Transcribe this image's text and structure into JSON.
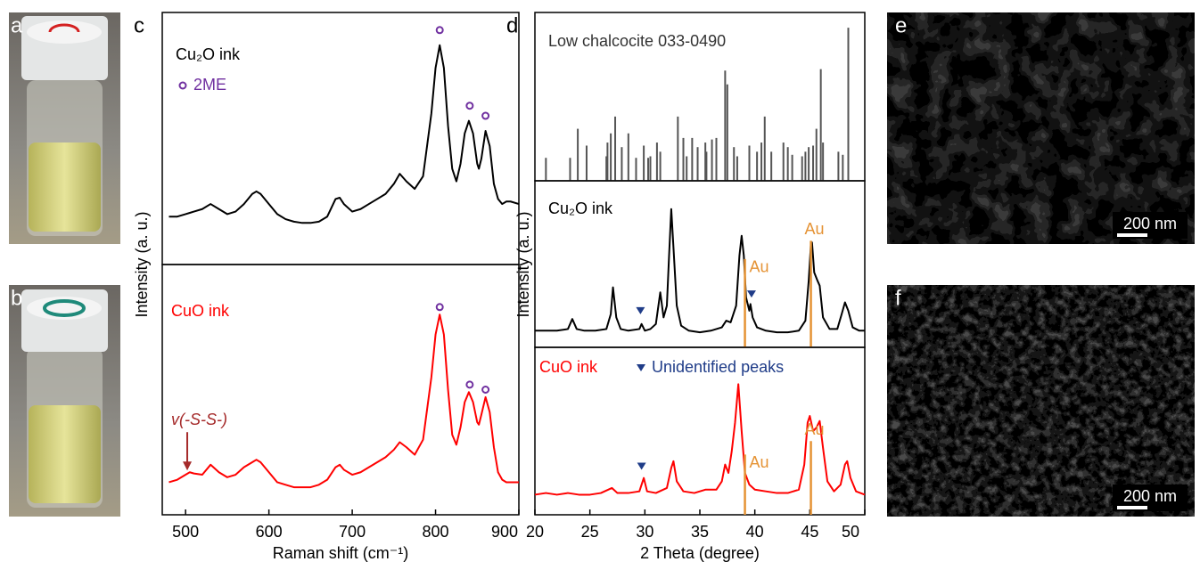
{
  "figure": {
    "panels": [
      "a",
      "b",
      "c",
      "d",
      "e",
      "f"
    ],
    "scale_bars": [
      "200 nm",
      "200 nm"
    ]
  },
  "chart_data": [
    {
      "type": "line",
      "xlim": [
        472,
        900
      ],
      "ylim": [
        0,
        1
      ],
      "x": [
        480,
        490,
        500,
        505,
        510,
        520,
        530,
        540,
        550,
        560,
        570,
        580,
        585,
        590,
        600,
        610,
        620,
        630,
        640,
        650,
        660,
        670,
        680,
        685,
        690,
        700,
        710,
        720,
        730,
        740,
        750,
        757,
        765,
        775,
        785,
        795,
        800,
        805,
        810,
        815,
        820,
        825,
        830,
        835,
        840,
        845,
        850,
        852,
        855,
        860,
        865,
        870,
        875,
        880,
        885,
        890,
        900
      ],
      "series": [
        {
          "name": "Cu₂O ink",
          "color": "#000000",
          "values": [
            0.19,
            0.19,
            0.2,
            0.205,
            0.21,
            0.22,
            0.24,
            0.22,
            0.2,
            0.21,
            0.24,
            0.28,
            0.29,
            0.28,
            0.24,
            0.2,
            0.18,
            0.17,
            0.165,
            0.165,
            0.17,
            0.19,
            0.26,
            0.265,
            0.24,
            0.21,
            0.22,
            0.24,
            0.26,
            0.28,
            0.32,
            0.36,
            0.33,
            0.3,
            0.35,
            0.6,
            0.78,
            0.87,
            0.78,
            0.55,
            0.38,
            0.33,
            0.4,
            0.52,
            0.57,
            0.52,
            0.4,
            0.38,
            0.42,
            0.53,
            0.47,
            0.32,
            0.26,
            0.24,
            0.25,
            0.25,
            0.24
          ]
        }
      ],
      "markers": {
        "name": "2ME",
        "shape": "circle",
        "color": "#7030a0",
        "x": [
          805,
          841,
          860
        ],
        "y": [
          0.93,
          0.63,
          0.59
        ]
      }
    },
    {
      "type": "line",
      "xlim": [
        472,
        900
      ],
      "ylim": [
        0,
        1
      ],
      "xticks": [
        500,
        600,
        700,
        800,
        900
      ],
      "xlabel": "Raman shift (cm⁻¹)",
      "ylabel": "Intensity (a. u.)",
      "x": [
        480,
        490,
        500,
        505,
        510,
        520,
        530,
        540,
        550,
        560,
        570,
        580,
        585,
        590,
        600,
        610,
        620,
        630,
        640,
        650,
        660,
        670,
        680,
        685,
        690,
        700,
        710,
        720,
        730,
        740,
        750,
        757,
        765,
        775,
        785,
        795,
        800,
        805,
        810,
        815,
        820,
        825,
        830,
        835,
        840,
        845,
        850,
        852,
        855,
        860,
        865,
        870,
        875,
        880,
        885,
        890,
        900
      ],
      "series": [
        {
          "name": "CuO ink",
          "color": "#ff0000",
          "values": [
            0.13,
            0.14,
            0.16,
            0.17,
            0.165,
            0.16,
            0.2,
            0.17,
            0.15,
            0.16,
            0.19,
            0.21,
            0.22,
            0.21,
            0.17,
            0.13,
            0.12,
            0.11,
            0.11,
            0.11,
            0.12,
            0.14,
            0.19,
            0.2,
            0.18,
            0.16,
            0.17,
            0.19,
            0.21,
            0.23,
            0.26,
            0.29,
            0.27,
            0.24,
            0.3,
            0.55,
            0.72,
            0.8,
            0.72,
            0.5,
            0.32,
            0.28,
            0.35,
            0.45,
            0.49,
            0.45,
            0.37,
            0.36,
            0.4,
            0.47,
            0.41,
            0.27,
            0.17,
            0.14,
            0.13,
            0.13,
            0.13
          ]
        }
      ],
      "markers": {
        "shape": "circle",
        "color": "#7030a0",
        "x": [
          805,
          841,
          860
        ],
        "y": [
          0.83,
          0.52,
          0.5
        ]
      },
      "annotation": {
        "text": "v(-S-S-)",
        "color": "#a52a2a",
        "x": 502,
        "y": 0.17
      }
    },
    {
      "type": "stick",
      "xlim": [
        20,
        50
      ],
      "ylim": [
        0,
        110
      ],
      "title": "Low chalcocite 033-0490",
      "color": "#555555",
      "x": [
        21,
        23.2,
        23.9,
        24.7,
        26.5,
        26.6,
        26.9,
        27.3,
        27.9,
        28.5,
        29.2,
        29.9,
        30.3,
        30.5,
        31.1,
        31.4,
        33,
        33.5,
        33.8,
        34.3,
        34.8,
        35.5,
        35.6,
        36.1,
        36.5,
        37.3,
        37.5,
        38.1,
        38.4,
        39.5,
        40.2,
        40.6,
        40.9,
        41.5,
        42.6,
        43,
        43.4,
        44.3,
        44.6,
        44.9,
        45.3,
        45.6,
        46,
        46.2,
        47.6,
        48,
        48.5
      ],
      "values": [
        15,
        15,
        34,
        23,
        16,
        25,
        31,
        42,
        22,
        31,
        15,
        23,
        15,
        16,
        25,
        19,
        42,
        28,
        16,
        28,
        22,
        25,
        19,
        27,
        28,
        72,
        63,
        22,
        16,
        23,
        19,
        25,
        42,
        19,
        25,
        22,
        17,
        16,
        19,
        22,
        23,
        34,
        73,
        25,
        19,
        17,
        100
      ]
    },
    {
      "type": "line",
      "xlim": [
        20,
        50
      ],
      "ylim": [
        0,
        1
      ],
      "x": [
        20,
        21,
        22,
        23,
        23.4,
        23.8,
        24.5,
        25.5,
        26.5,
        26.9,
        27.1,
        27.4,
        27.8,
        28.5,
        29.5,
        29.7,
        30,
        30.5,
        31,
        31.4,
        31.7,
        32,
        32.2,
        32.4,
        32.6,
        32.9,
        33.3,
        34,
        35,
        36,
        37,
        37.4,
        37.8,
        38.3,
        38.6,
        38.8,
        39,
        39.2,
        39.5,
        39.6,
        39.8,
        40.2,
        41,
        42,
        43,
        44,
        44.6,
        44.9,
        45.1,
        45.2,
        45.4,
        45.7,
        45.9,
        46.2,
        46.8,
        47.5,
        47.9,
        48.2,
        48.5,
        48.9,
        49.5,
        50
      ],
      "series": [
        {
          "name": "Cu₂O ink",
          "color": "#000000",
          "values": [
            0.1,
            0.1,
            0.1,
            0.11,
            0.17,
            0.11,
            0.1,
            0.1,
            0.11,
            0.2,
            0.36,
            0.18,
            0.11,
            0.1,
            0.11,
            0.14,
            0.1,
            0.11,
            0.14,
            0.33,
            0.18,
            0.25,
            0.55,
            0.83,
            0.6,
            0.25,
            0.13,
            0.1,
            0.09,
            0.1,
            0.12,
            0.16,
            0.15,
            0.25,
            0.55,
            0.67,
            0.55,
            0.3,
            0.22,
            0.26,
            0.18,
            0.12,
            0.1,
            0.09,
            0.09,
            0.1,
            0.16,
            0.4,
            0.62,
            0.63,
            0.45,
            0.4,
            0.37,
            0.18,
            0.11,
            0.11,
            0.2,
            0.27,
            0.22,
            0.12,
            0.1,
            0.1
          ]
        }
      ],
      "markers": {
        "shape": "triangle",
        "color": "#1f3c88",
        "x": [
          29.6,
          39.7
        ],
        "y": [
          0.22,
          0.32
        ]
      },
      "reference_lines": {
        "color": "#e59335",
        "x": [
          39.1,
          45.1
        ],
        "top": [
          0.53,
          0.64
        ],
        "labels": [
          "Au",
          "Au"
        ]
      }
    },
    {
      "type": "line",
      "xlim": [
        20,
        50
      ],
      "ylim": [
        0,
        1
      ],
      "xticks": [
        20,
        25,
        30,
        35,
        40,
        45,
        50
      ],
      "xlabel": "2 Theta (degree)",
      "ylabel": "Intensity (a. u.)",
      "x": [
        20,
        21,
        22,
        23,
        24,
        25,
        26,
        27,
        27.5,
        28.5,
        29.5,
        29.9,
        30.2,
        31,
        32,
        32.4,
        32.6,
        32.9,
        33.5,
        34.5,
        35.5,
        36.5,
        37,
        37.3,
        37.6,
        37.9,
        38.2,
        38.5,
        38.8,
        39.1,
        39.5,
        40,
        41,
        42,
        43,
        44,
        44.5,
        44.8,
        45,
        45.3,
        45.6,
        45.9,
        46.2,
        46.6,
        47.2,
        47.8,
        48.2,
        48.4,
        48.7,
        49.2,
        50
      ],
      "series": [
        {
          "name": "CuO ink",
          "color": "#ff0000",
          "values": [
            0.12,
            0.13,
            0.12,
            0.13,
            0.12,
            0.12,
            0.13,
            0.16,
            0.13,
            0.13,
            0.14,
            0.22,
            0.14,
            0.13,
            0.16,
            0.28,
            0.32,
            0.2,
            0.14,
            0.13,
            0.15,
            0.15,
            0.2,
            0.3,
            0.25,
            0.38,
            0.55,
            0.78,
            0.5,
            0.25,
            0.18,
            0.15,
            0.14,
            0.13,
            0.13,
            0.15,
            0.3,
            0.55,
            0.59,
            0.5,
            0.52,
            0.56,
            0.4,
            0.2,
            0.14,
            0.18,
            0.3,
            0.32,
            0.22,
            0.14,
            0.12
          ]
        }
      ],
      "markers": {
        "name": "Unidentified peaks",
        "shape": "triangle",
        "color": "#1f3c88",
        "x": [
          29.7
        ],
        "y": [
          0.29
        ]
      },
      "reference_lines": {
        "color": "#e59335",
        "x": [
          39.1,
          45.1
        ],
        "top": [
          0.36,
          0.44
        ],
        "labels": [
          "Au",
          "Au"
        ]
      }
    }
  ]
}
